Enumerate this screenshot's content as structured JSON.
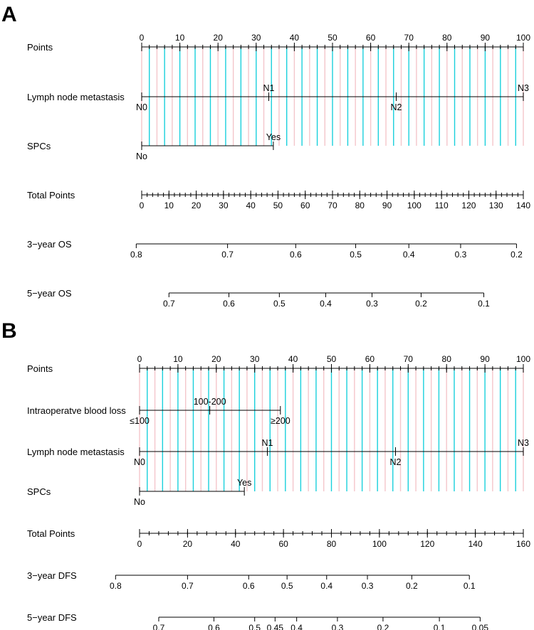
{
  "chart_data": [
    {
      "type": "nomogram",
      "panel_label": "A",
      "points_range": [
        0,
        100
      ],
      "rows": [
        {
          "label": "Points",
          "kind": "points",
          "ticks": [
            0,
            10,
            20,
            30,
            40,
            50,
            60,
            70,
            80,
            90,
            100
          ],
          "minor_step": 2
        },
        {
          "label": "Lymph node metastasis",
          "kind": "variable",
          "levels": [
            {
              "label": "N0",
              "points": 0,
              "side": "below"
            },
            {
              "label": "N1",
              "points": 33.3,
              "side": "above"
            },
            {
              "label": "N2",
              "points": 66.7,
              "side": "below"
            },
            {
              "label": "N3",
              "points": 100,
              "side": "above"
            }
          ]
        },
        {
          "label": "SPCs",
          "kind": "variable",
          "levels": [
            {
              "label": "No",
              "points": 0,
              "side": "below"
            },
            {
              "label": "Yes",
              "points": 34.5,
              "side": "above"
            }
          ]
        },
        {
          "label": "Total Points",
          "kind": "total",
          "range": [
            0,
            140
          ],
          "ticks": [
            0,
            10,
            20,
            30,
            40,
            50,
            60,
            70,
            80,
            90,
            100,
            110,
            120,
            130,
            140
          ],
          "minor_step": 2
        },
        {
          "label": "3−year OS",
          "kind": "probability",
          "ticks": [
            {
              "label": "0.8",
              "total": -2.0
            },
            {
              "label": "0.7",
              "total": 31.5
            },
            {
              "label": "0.6",
              "total": 56.5
            },
            {
              "label": "0.5",
              "total": 78.5
            },
            {
              "label": "0.4",
              "total": 98.0
            },
            {
              "label": "0.3",
              "total": 117.0
            },
            {
              "label": "0.2",
              "total": 137.5
            }
          ]
        },
        {
          "label": "5−year OS",
          "kind": "probability",
          "ticks": [
            {
              "label": "0.7",
              "total": 10.0
            },
            {
              "label": "0.6",
              "total": 32.0
            },
            {
              "label": "0.5",
              "total": 50.5
            },
            {
              "label": "0.4",
              "total": 67.5
            },
            {
              "label": "0.3",
              "total": 84.5
            },
            {
              "label": "0.2",
              "total": 102.5
            },
            {
              "label": "0.1",
              "total": 125.5
            }
          ]
        }
      ],
      "gridlines": {
        "major_color": "#f4c6cb",
        "minor_color": "#19d0dc"
      }
    },
    {
      "type": "nomogram",
      "panel_label": "B",
      "points_range": [
        0,
        100
      ],
      "rows": [
        {
          "label": "Points",
          "kind": "points",
          "ticks": [
            0,
            10,
            20,
            30,
            40,
            50,
            60,
            70,
            80,
            90,
            100
          ],
          "minor_step": 2
        },
        {
          "label": "Intraoperatve blood loss",
          "kind": "variable",
          "levels": [
            {
              "label": "≤100",
              "points": 0,
              "side": "below"
            },
            {
              "label": "100-200",
              "points": 18.3,
              "side": "above"
            },
            {
              "label": "≥200",
              "points": 36.7,
              "side": "below"
            }
          ]
        },
        {
          "label": "Lymph node metastasis",
          "kind": "variable",
          "levels": [
            {
              "label": "N0",
              "points": 0,
              "side": "below"
            },
            {
              "label": "N1",
              "points": 33.3,
              "side": "above"
            },
            {
              "label": "N2",
              "points": 66.7,
              "side": "below"
            },
            {
              "label": "N3",
              "points": 100,
              "side": "above"
            }
          ]
        },
        {
          "label": "SPCs",
          "kind": "variable",
          "levels": [
            {
              "label": "No",
              "points": 0,
              "side": "below"
            },
            {
              "label": "Yes",
              "points": 27.3,
              "side": "above"
            }
          ]
        },
        {
          "label": "Total Points",
          "kind": "total",
          "range": [
            0,
            160
          ],
          "ticks": [
            0,
            20,
            40,
            60,
            80,
            100,
            120,
            140,
            160
          ],
          "minor_step": 4
        },
        {
          "label": "3−year DFS",
          "kind": "probability",
          "ticks": [
            {
              "label": "0.8",
              "total": -10.0
            },
            {
              "label": "0.7",
              "total": 20.0
            },
            {
              "label": "0.6",
              "total": 45.5
            },
            {
              "label": "0.5",
              "total": 61.5
            },
            {
              "label": "0.4",
              "total": 78.0
            },
            {
              "label": "0.3",
              "total": 95.0
            },
            {
              "label": "0.2",
              "total": 113.5
            },
            {
              "label": "0.1",
              "total": 137.5
            }
          ]
        },
        {
          "label": "5−year DFS",
          "kind": "probability",
          "ticks": [
            {
              "label": "0.7",
              "total": 8.0
            },
            {
              "label": "0.6",
              "total": 31.0
            },
            {
              "label": "0.5",
              "total": 48.0
            },
            {
              "label": "0.45",
              "total": 56.5
            },
            {
              "label": "0.4",
              "total": 65.5
            },
            {
              "label": "0.3",
              "total": 82.5
            },
            {
              "label": "0.2",
              "total": 101.5
            },
            {
              "label": "0.1",
              "total": 125.0
            },
            {
              "label": "0.05",
              "total": 142.0
            }
          ]
        }
      ],
      "gridlines": {
        "major_color": "#f4c6cb",
        "minor_color": "#19d0dc"
      }
    }
  ]
}
